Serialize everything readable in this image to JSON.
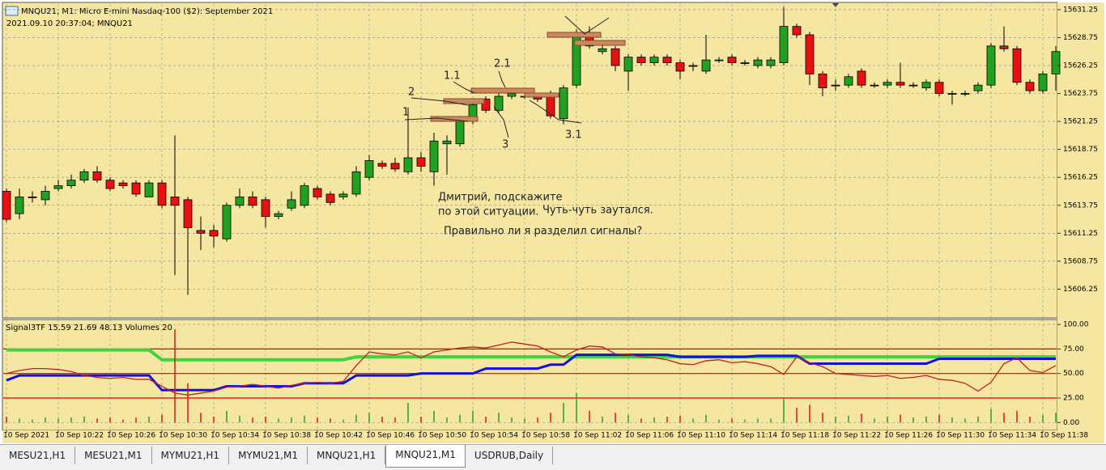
{
  "header": {
    "title": "MNQU21, M1:  Micro E-mini Nasdaq-100 ($2): September 2021",
    "subtitle": "2021.09.10 20:37:04; MNQU21"
  },
  "chart_data": [
    {
      "type": "candlestick",
      "up_color": "#22a022",
      "down_color": "#e81010",
      "grid": true,
      "categories": [
        "10 Sep 2021",
        null,
        null,
        null,
        "10 Sep 10:22",
        null,
        null,
        null,
        "10 Sep 10:26",
        null,
        null,
        null,
        "10 Sep 10:30",
        null,
        null,
        null,
        "10 Sep 10:34",
        null,
        null,
        null,
        "10 Sep 10:38",
        null,
        null,
        null,
        "10 Sep 10:42",
        null,
        null,
        null,
        "10 Sep 10:46",
        null,
        null,
        null,
        "10 Sep 10:50",
        null,
        null,
        null,
        "10 Sep 10:54",
        null,
        null,
        null,
        "10 Sep 10:58",
        null,
        null,
        null,
        "10 Sep 11:02",
        null,
        null,
        null,
        "10 Sep 11:06",
        null,
        null,
        null,
        "10 Sep 11:10",
        null,
        null,
        null,
        "10 Sep 11:14",
        null,
        null,
        null,
        "10 Sep 11:18",
        null,
        null,
        null,
        "10 Sep 11:22",
        null,
        null,
        null,
        "10 Sep 11:26",
        null,
        null,
        null,
        "10 Sep 11:30",
        null,
        null,
        null,
        "10 Sep 11:34",
        null,
        null,
        null,
        "10 Sep 11:38",
        null
      ],
      "open": [
        15615.0,
        15613.0,
        15614.5,
        15614.25,
        15615.25,
        15615.5,
        15616.0,
        15616.75,
        15616.0,
        15615.75,
        15615.75,
        15614.5,
        15615.75,
        15614.5,
        15614.25,
        15611.5,
        15611.5,
        15610.75,
        15613.75,
        15614.5,
        15614.25,
        15612.75,
        15613.5,
        15613.75,
        15615.25,
        15614.75,
        15614.5,
        15614.75,
        15616.25,
        15617.5,
        15617.5,
        15616.75,
        15618.0,
        15616.75,
        15619.25,
        15619.25,
        15621.25,
        15623.25,
        15622.25,
        15623.5,
        15623.5,
        15623.5,
        15623.5,
        15621.5,
        15624.5,
        15629.0,
        15627.5,
        15627.75,
        15625.75,
        15627.0,
        15626.5,
        15627.0,
        15626.5,
        15626.25,
        15625.75,
        15626.75,
        15627.0,
        15626.5,
        15626.25,
        15626.25,
        15626.5,
        15629.75,
        15629.0,
        15625.5,
        15624.5,
        15624.5,
        15625.75,
        15624.5,
        15624.5,
        15624.75,
        15624.5,
        15624.25,
        15624.75,
        15623.75,
        15623.75,
        15624.0,
        15624.5,
        15628.0,
        15627.75,
        15624.75,
        15624.0,
        15625.5
      ],
      "high": [
        15615.25,
        15615.25,
        15615.0,
        15615.5,
        15616.0,
        15616.5,
        15617.0,
        15617.25,
        15616.25,
        15616.0,
        15616.0,
        15616.0,
        15616.0,
        15620.0,
        15614.5,
        15612.75,
        15612.0,
        15614.0,
        15615.25,
        15615.0,
        15614.5,
        15613.25,
        15615.0,
        15615.75,
        15615.5,
        15615.0,
        15615.0,
        15617.25,
        15618.25,
        15617.75,
        15618.0,
        15622.5,
        15618.5,
        15620.25,
        15620.0,
        15621.75,
        15623.0,
        15623.5,
        15624.0,
        15624.0,
        15623.75,
        15623.75,
        15624.0,
        15624.5,
        15629.5,
        15629.75,
        15628.5,
        15628.0,
        15627.25,
        15627.25,
        15627.25,
        15627.25,
        15626.75,
        15626.5,
        15629.0,
        15627.0,
        15627.25,
        15626.75,
        15627.0,
        15627.0,
        15631.5,
        15630.0,
        15629.25,
        15625.75,
        15625.0,
        15625.5,
        15626.0,
        15624.75,
        15625.0,
        15626.5,
        15624.75,
        15625.0,
        15625.0,
        15624.0,
        15624.0,
        15624.75,
        15628.25,
        15629.75,
        15628.0,
        15625.0,
        15625.75,
        15628.0
      ],
      "low": [
        15612.25,
        15612.5,
        15614.0,
        15613.75,
        15615.0,
        15615.25,
        15615.75,
        15615.75,
        15615.0,
        15615.25,
        15614.5,
        15614.5,
        15613.5,
        15607.5,
        15605.75,
        15609.75,
        15610.0,
        15610.5,
        15613.5,
        15613.5,
        15611.75,
        15612.5,
        15613.25,
        15613.5,
        15614.25,
        15613.75,
        15614.25,
        15614.5,
        15616.0,
        15617.0,
        15616.75,
        15616.5,
        15616.75,
        15615.5,
        15616.5,
        15619.0,
        15621.0,
        15622.0,
        15622.0,
        15623.25,
        15623.25,
        15623.0,
        15621.5,
        15621.0,
        15624.25,
        15627.75,
        15627.25,
        15625.75,
        15624.0,
        15626.25,
        15626.25,
        15626.25,
        15625.0,
        15625.75,
        15625.5,
        15626.5,
        15626.25,
        15626.25,
        15626.0,
        15626.0,
        15626.25,
        15628.75,
        15624.5,
        15623.5,
        15624.0,
        15624.25,
        15624.25,
        15624.25,
        15624.25,
        15624.25,
        15624.25,
        15624.0,
        15623.5,
        15622.75,
        15623.5,
        15623.75,
        15624.25,
        15627.5,
        15624.5,
        15623.75,
        15623.75,
        15624.0
      ],
      "close": [
        15612.5,
        15614.5,
        15614.5,
        15615.0,
        15615.5,
        15616.0,
        15616.75,
        15616.0,
        15615.25,
        15615.5,
        15614.75,
        15615.75,
        15613.75,
        15613.75,
        15611.75,
        15611.25,
        15611.0,
        15613.75,
        15614.5,
        15613.75,
        15612.75,
        15613.0,
        15614.25,
        15615.5,
        15614.5,
        15614.0,
        15614.75,
        15616.75,
        15617.75,
        15617.25,
        15617.0,
        15618.0,
        15617.25,
        15619.5,
        15619.5,
        15621.25,
        15622.75,
        15622.25,
        15623.5,
        15623.75,
        15623.5,
        15623.25,
        15621.75,
        15624.25,
        15629.0,
        15628.0,
        15627.75,
        15626.25,
        15627.0,
        15626.5,
        15627.0,
        15626.5,
        15625.75,
        15626.25,
        15626.75,
        15626.75,
        15626.5,
        15626.5,
        15626.75,
        15626.75,
        15629.75,
        15629.0,
        15625.5,
        15624.25,
        15624.5,
        15625.25,
        15624.5,
        15624.5,
        15624.75,
        15624.5,
        15624.5,
        15624.75,
        15623.75,
        15623.75,
        15623.75,
        15624.5,
        15628.0,
        15627.75,
        15624.75,
        15624.0,
        15625.5,
        15627.5
      ],
      "ylim": [
        15603.75,
        15631.75
      ],
      "yticks": [
        15631.25,
        15628.75,
        15626.25,
        15623.75,
        15621.25,
        15618.75,
        15616.25,
        15613.75,
        15611.25,
        15608.75,
        15606.25
      ]
    },
    {
      "type": "line",
      "title": "Signal3TF 15.59 21.69 48.13 Volumes 20",
      "grid": true,
      "ylim": [
        -8,
        105
      ],
      "yticks": [
        {
          "value": 100,
          "label": "100.00"
        },
        {
          "value": 75,
          "label": "75.00"
        },
        {
          "value": 50,
          "label": "50.00"
        },
        {
          "value": 25,
          "label": "25.00"
        },
        {
          "value": 0,
          "label": "0.00"
        }
      ],
      "levels": [
        75,
        50,
        25
      ],
      "level_color": "#e00000",
      "series": [
        {
          "color": "#3ed43e",
          "width": 4,
          "values": [
            74,
            74,
            74,
            74,
            74,
            74,
            74,
            74,
            74,
            74,
            74,
            74,
            64,
            64,
            64,
            64,
            64,
            64,
            64,
            64,
            64,
            64,
            64,
            64,
            64,
            64,
            64,
            67,
            67,
            67,
            67,
            67,
            67,
            67,
            67,
            67,
            67,
            67,
            67,
            67,
            67,
            67,
            67,
            67,
            67,
            67,
            67,
            67,
            67,
            67,
            67,
            67,
            67,
            67,
            67,
            67,
            67,
            67,
            67,
            67,
            67,
            67,
            67,
            67,
            67,
            67,
            67,
            67,
            67,
            67,
            67,
            67,
            67,
            67,
            67,
            67,
            67,
            67,
            67,
            67,
            67,
            67
          ]
        },
        {
          "color": "#1010e0",
          "width": 3,
          "values": [
            43,
            48,
            48,
            48,
            48,
            48,
            48,
            48,
            48,
            48,
            48,
            48,
            33,
            33,
            33,
            33,
            33,
            37,
            37,
            37,
            37,
            37,
            37,
            40,
            40,
            40,
            40,
            48,
            48,
            48,
            48,
            48,
            50,
            50,
            50,
            50,
            50,
            55,
            55,
            55,
            55,
            55,
            59,
            59,
            69,
            69,
            69,
            69,
            69,
            69,
            69,
            69,
            67,
            67,
            67,
            67,
            67,
            67,
            68,
            68,
            68,
            68,
            60,
            60,
            60,
            60,
            60,
            60,
            60,
            60,
            60,
            60,
            65,
            65,
            65,
            65,
            65,
            65,
            65,
            65,
            65,
            65
          ]
        },
        {
          "color": "#c02020",
          "width": 1.3,
          "values": [
            50,
            53,
            55,
            55,
            54,
            52,
            48,
            46,
            45,
            46,
            44,
            44,
            37,
            30,
            28,
            30,
            32,
            36,
            37,
            39,
            37,
            35,
            38,
            40,
            41,
            40,
            42,
            58,
            72,
            70,
            69,
            72,
            66,
            72,
            74,
            76,
            77,
            76,
            79,
            82,
            80,
            78,
            72,
            67,
            74,
            78,
            77,
            70,
            69,
            67,
            66,
            64,
            60,
            59,
            63,
            64,
            61,
            62,
            60,
            57,
            49,
            67,
            61,
            57,
            50,
            49,
            48,
            47,
            48,
            45,
            46,
            48,
            44,
            43,
            40,
            32,
            41,
            60,
            66,
            53,
            51,
            58
          ]
        },
        {
          "type": "bar",
          "color": "#2aa02a",
          "values": [
            6,
            4,
            3,
            5,
            4,
            5,
            6,
            4,
            5,
            3,
            5,
            6,
            8,
            95,
            40,
            10,
            6,
            12,
            7,
            5,
            6,
            4,
            5,
            7,
            5,
            4,
            3,
            8,
            10,
            6,
            5,
            20,
            6,
            12,
            5,
            8,
            12,
            6,
            10,
            5,
            4,
            5,
            10,
            20,
            30,
            12,
            6,
            10,
            8,
            4,
            5,
            6,
            7,
            4,
            8,
            3,
            4,
            3,
            4,
            4,
            25,
            15,
            18,
            10,
            6,
            7,
            9,
            4,
            6,
            8,
            5,
            6,
            8,
            5,
            4,
            6,
            14,
            10,
            12,
            6,
            8,
            10
          ]
        }
      ]
    }
  ],
  "annotations": {
    "labels": [
      "1",
      "2",
      "1.1",
      "2.1",
      "3",
      "3.1"
    ],
    "message": [
      "Дмитрий, подскажите",
      "по этой ситуации.",
      "Чуть-чуть заутался.",
      "Правильно ли я разделил сигналы?"
    ]
  },
  "tabs": {
    "items": [
      "MESU21,H1",
      "MESU21,M1",
      "MYMU21,H1",
      "MYMU21,M1",
      "MNQU21,H1",
      "MNQU21,M1",
      "USDRUB,Daily"
    ],
    "active": 5
  }
}
